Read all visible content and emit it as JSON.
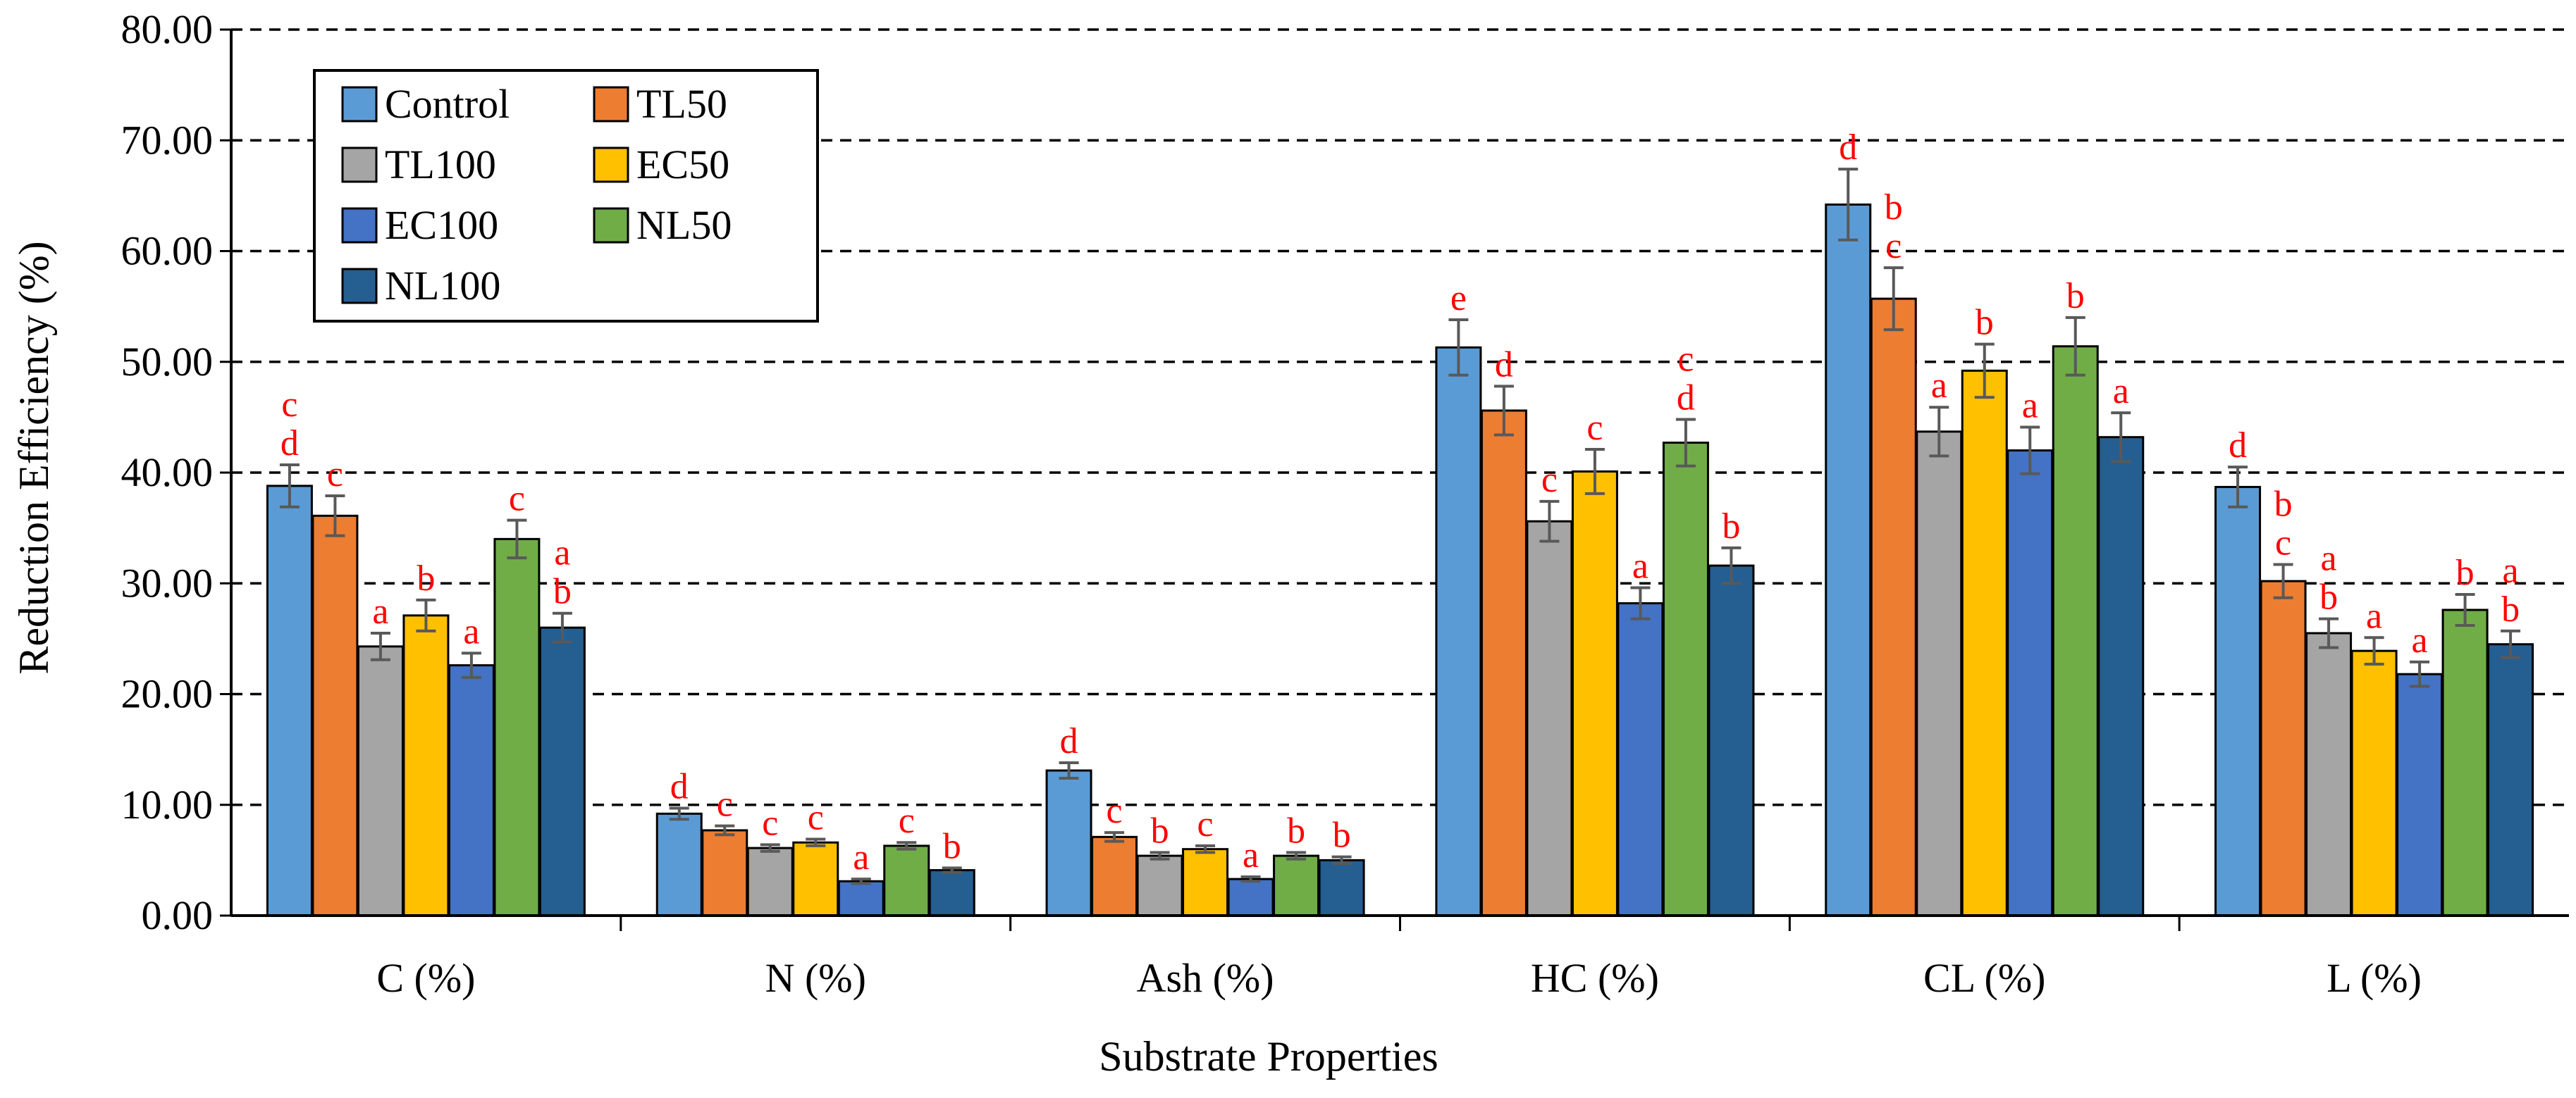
{
  "chart_data": {
    "type": "bar",
    "title": "",
    "xlabel": "Substrate Properties",
    "ylabel": "Reduction Efficiency (%)",
    "ylim": [
      0,
      80
    ],
    "yticks": [
      "0.00",
      "10.00",
      "20.00",
      "30.00",
      "40.00",
      "50.00",
      "60.00",
      "70.00",
      "80.00"
    ],
    "grid": "horizontal dashed",
    "legend_position": "top-left",
    "categories": [
      "C (%)",
      "N (%)",
      "Ash (%)",
      "HC (%)",
      "CL (%)",
      "L (%)"
    ],
    "series": [
      {
        "name": "Control",
        "color": "#5B9BD5",
        "values": [
          38.8,
          9.2,
          13.1,
          51.3,
          64.2,
          38.7
        ],
        "errors": [
          1.9,
          0.5,
          0.7,
          2.5,
          3.2,
          1.8
        ],
        "letters": [
          "c\nd",
          "d",
          "d",
          "e",
          "d",
          "d"
        ]
      },
      {
        "name": "TL50",
        "color": "#ED7D31",
        "values": [
          36.1,
          7.7,
          7.1,
          45.6,
          55.7,
          30.2
        ],
        "errors": [
          1.8,
          0.4,
          0.4,
          2.2,
          2.8,
          1.5
        ],
        "letters": [
          "c",
          "c",
          "c",
          "d",
          "b\nc",
          "b\nc"
        ]
      },
      {
        "name": "TL100",
        "color": "#A5A5A5",
        "values": [
          24.3,
          6.1,
          5.4,
          35.6,
          43.7,
          25.5
        ],
        "errors": [
          1.2,
          0.3,
          0.3,
          1.8,
          2.2,
          1.3
        ],
        "letters": [
          "a",
          "c",
          "b",
          "c",
          "a",
          "a\nb"
        ]
      },
      {
        "name": "EC50",
        "color": "#FFC000",
        "values": [
          27.1,
          6.6,
          6.0,
          40.1,
          49.2,
          23.9
        ],
        "errors": [
          1.4,
          0.3,
          0.3,
          2.0,
          2.4,
          1.2
        ],
        "letters": [
          "b",
          "c",
          "c",
          "c",
          "b",
          "a"
        ]
      },
      {
        "name": "EC100",
        "color": "#4472C4",
        "values": [
          22.6,
          3.1,
          3.3,
          28.2,
          42.0,
          21.8
        ],
        "errors": [
          1.1,
          0.2,
          0.2,
          1.4,
          2.1,
          1.1
        ],
        "letters": [
          "a",
          "a",
          "a",
          "a",
          "a",
          "a"
        ]
      },
      {
        "name": "NL50",
        "color": "#70AD47",
        "values": [
          34.0,
          6.3,
          5.4,
          42.7,
          51.4,
          27.6
        ],
        "errors": [
          1.7,
          0.3,
          0.3,
          2.1,
          2.6,
          1.4
        ],
        "letters": [
          "c",
          "c",
          "b",
          "c\nd",
          "b",
          "b"
        ]
      },
      {
        "name": "NL100",
        "color": "#255E91",
        "values": [
          26.0,
          4.1,
          5.0,
          31.6,
          43.2,
          24.5
        ],
        "errors": [
          1.3,
          0.2,
          0.3,
          1.6,
          2.2,
          1.2
        ],
        "letters": [
          "a\nb",
          "b",
          "b",
          "b",
          "a",
          "a\nb"
        ]
      }
    ]
  }
}
